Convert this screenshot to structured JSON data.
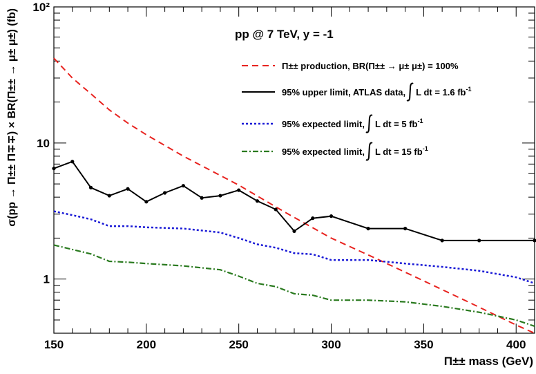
{
  "chart_data": {
    "type": "line",
    "title": "pp @ 7 TeV,  y = -1",
    "xlabel": "Π±± mass (GeV)",
    "ylabel": "σ(pp → Π±± Π∓∓) × BR(Π±± → μ± μ±) (fb)",
    "xlim": [
      150,
      410
    ],
    "ylim": [
      0.4,
      100
    ],
    "yscale": "log",
    "grid": false,
    "legend_position": "top-right",
    "x_ticks": [
      "150",
      "200",
      "250",
      "300",
      "350",
      "400"
    ],
    "y_ticks": [
      {
        "value": 1,
        "label": "1"
      },
      {
        "value": 10,
        "label": "10"
      },
      {
        "value": 100,
        "label": "10²"
      }
    ],
    "series": [
      {
        "name": "Π±± production, BR(Π±± → μ± μ±) = 100%",
        "style": "dashed",
        "color": "#e8231f",
        "markers": false,
        "x": [
          150,
          160,
          170,
          180,
          190,
          200,
          220,
          250,
          275,
          300,
          325,
          350,
          375,
          400,
          410
        ],
        "y": [
          42,
          30,
          23,
          17.5,
          14,
          11.5,
          8,
          4.9,
          3.1,
          2.0,
          1.4,
          0.97,
          0.67,
          0.46,
          0.4
        ]
      },
      {
        "name": "95% upper limit, ATLAS data,",
        "integral_text": "L dt = 1.6 fb",
        "integral_sup": "-1",
        "style": "solid",
        "color": "#000000",
        "markers": true,
        "x": [
          150,
          160,
          170,
          180,
          190,
          200,
          210,
          220,
          230,
          240,
          250,
          260,
          270,
          280,
          290,
          300,
          320,
          340,
          360,
          380,
          410
        ],
        "y": [
          6.5,
          7.3,
          4.7,
          4.1,
          4.6,
          3.7,
          4.3,
          4.85,
          3.95,
          4.1,
          4.5,
          3.75,
          3.25,
          2.25,
          2.8,
          2.9,
          2.35,
          2.35,
          1.92,
          1.92,
          1.92
        ]
      },
      {
        "name": "95% expected limit,",
        "integral_text": "L dt = 5 fb",
        "integral_sup": "-1",
        "style": "dotted",
        "color": "#1a1ad6",
        "markers": false,
        "x": [
          150,
          160,
          170,
          180,
          190,
          200,
          220,
          240,
          250,
          260,
          270,
          280,
          290,
          300,
          320,
          340,
          360,
          380,
          400,
          410
        ],
        "y": [
          3.15,
          2.95,
          2.75,
          2.45,
          2.45,
          2.4,
          2.35,
          2.2,
          2.0,
          1.8,
          1.7,
          1.55,
          1.52,
          1.38,
          1.38,
          1.3,
          1.23,
          1.15,
          1.03,
          0.93
        ]
      },
      {
        "name": "95% expected limit,",
        "integral_text": "L dt = 15 fb",
        "integral_sup": "-1",
        "style": "dashdot",
        "color": "#2a7a1f",
        "markers": false,
        "x": [
          150,
          160,
          170,
          180,
          190,
          200,
          220,
          240,
          250,
          260,
          270,
          280,
          290,
          300,
          320,
          340,
          360,
          380,
          400,
          410
        ],
        "y": [
          1.78,
          1.65,
          1.53,
          1.35,
          1.33,
          1.3,
          1.25,
          1.17,
          1.05,
          0.93,
          0.88,
          0.78,
          0.76,
          0.7,
          0.7,
          0.68,
          0.63,
          0.57,
          0.5,
          0.45
        ]
      }
    ]
  }
}
